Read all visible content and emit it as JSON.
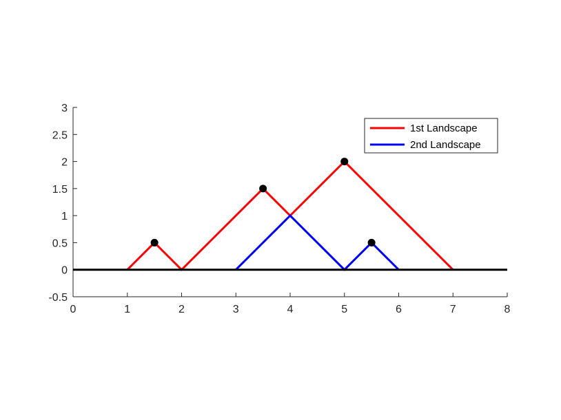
{
  "chart_data": {
    "type": "line",
    "title": "",
    "xlabel": "",
    "ylabel": "",
    "xlim": [
      0,
      8
    ],
    "ylim": [
      -0.5,
      3
    ],
    "xticks": [
      "0",
      "1",
      "2",
      "3",
      "4",
      "5",
      "6",
      "7",
      "8"
    ],
    "yticks": [
      "-0.5",
      "0",
      "0.5",
      "1",
      "1.5",
      "2",
      "2.5",
      "3"
    ],
    "grid": false,
    "legend_position": "top-right",
    "baseline": {
      "y": 0,
      "x": [
        0,
        8
      ],
      "color": "#000000"
    },
    "series": [
      {
        "name": "1st Landscape",
        "color": "#ff0000",
        "x": [
          1,
          1.5,
          2,
          3.5,
          4,
          5,
          7
        ],
        "y": [
          0,
          0.5,
          0,
          1.5,
          1,
          2,
          0
        ]
      },
      {
        "name": "2nd Landscape",
        "color": "#0000ff",
        "x": [
          3,
          4,
          5,
          5.5,
          6
        ],
        "y": [
          0,
          1,
          0,
          0.5,
          0
        ]
      }
    ],
    "points": {
      "color": "#000000",
      "x": [
        1.5,
        3.5,
        5,
        5.5
      ],
      "y": [
        0.5,
        1.5,
        2,
        0.5
      ]
    }
  }
}
